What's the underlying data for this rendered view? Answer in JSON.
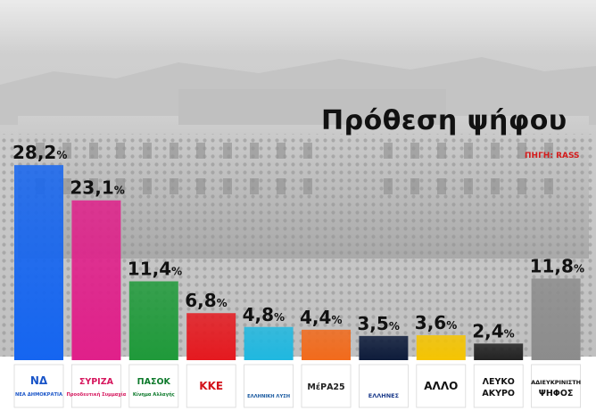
{
  "header": {
    "title": "Πρόθεση ψήφου",
    "source": "ΠΗΓΗ: RASS"
  },
  "chart_data": {
    "type": "bar",
    "title": "Πρόθεση ψήφου",
    "source": "ΠΗΓΗ: RASS",
    "categories": [
      "ΝΕΑ ΔΗΜΟΚΡΑΤΙΑ",
      "ΣΥΡΙΖΑ",
      "ΠΑΣΟΚ",
      "ΚΚΕ",
      "ΕΛΛΗΝΙΚΗ ΛΥΣΗ",
      "ΜέΡΑ25",
      "ΕΛΛΗΝΕΣ",
      "ΑΛΛΟ",
      "ΛΕΥΚΟ ΑΚΥΡΟ",
      "ΑΔΙΕΥΚΡΙΝΙΣΤΗ ΨΗΦΟΣ"
    ],
    "values": [
      28.2,
      23.1,
      11.4,
      6.8,
      4.8,
      4.4,
      3.5,
      3.6,
      2.4,
      11.8
    ],
    "value_labels": [
      "28,2",
      "23,1",
      "11,4",
      "6,8",
      "4,8",
      "4,4",
      "3,5",
      "3,6",
      "2,4",
      "11,8"
    ],
    "unit": "%",
    "colors": [
      "#1565f0",
      "#e0208a",
      "#1f9a3a",
      "#e5191f",
      "#1fb8e0",
      "#f26a1b",
      "#0d1b3a",
      "#f5c400",
      "#222222",
      "#8c8c8c"
    ],
    "logos": [
      {
        "line1": "ΝΔ",
        "line2": "ΝΕΑ ΔΗΜΟΚΡΑΤΙΑ",
        "color": "#1a55c8"
      },
      {
        "line1": "ΣΥΡΙΖΑ",
        "line2": "Προοδευτική Συμμαχία",
        "color": "#d6175e"
      },
      {
        "line1": "ΠΑΣΟΚ",
        "line2": "Κίνημα Αλλαγής",
        "color": "#0e7a2c"
      },
      {
        "line1": "ΚΚΕ",
        "line2": "",
        "color": "#d3121a"
      },
      {
        "line1": "",
        "line2": "ΕΛΛΗΝΙΚΗ ΛΥΣΗ",
        "color": "#1a5aa0"
      },
      {
        "line1": "ΜέΡΑ25",
        "line2": "",
        "color": "#222222"
      },
      {
        "line1": "",
        "line2": "ΕΛΛΗΝΕΣ",
        "color": "#1a3a8a"
      },
      {
        "line1": "ΑΛΛΟ",
        "line2": "",
        "color": "#111111"
      },
      {
        "line1": "ΛΕΥΚΟ",
        "line2": "ΑΚΥΡΟ",
        "color": "#111111"
      },
      {
        "line1": "ΑΔΙΕΥΚΡΙΝΙΣΤΗ",
        "line2": "ΨΗΦΟΣ",
        "color": "#111111"
      }
    ],
    "ylim": [
      0,
      30
    ]
  }
}
